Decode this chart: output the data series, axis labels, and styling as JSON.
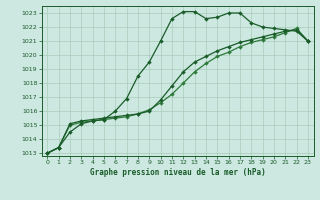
{
  "title": "Graphe pression niveau de la mer (hPa)",
  "background_color": "#cce8e0",
  "grid_color": "#aaccbb",
  "line_color_dark": "#1a5c2a",
  "line_color_medium": "#2d7a3a",
  "xlim": [
    -0.5,
    23.5
  ],
  "ylim": [
    1012.8,
    1023.5
  ],
  "xticks": [
    0,
    1,
    2,
    3,
    4,
    5,
    6,
    7,
    8,
    9,
    10,
    11,
    12,
    13,
    14,
    15,
    16,
    17,
    18,
    19,
    20,
    21,
    22,
    23
  ],
  "yticks": [
    1013,
    1014,
    1015,
    1016,
    1017,
    1018,
    1019,
    1020,
    1021,
    1022,
    1023
  ],
  "series1_x": [
    0,
    1,
    2,
    3,
    4,
    5,
    6,
    7,
    8,
    9,
    10,
    11,
    12,
    13,
    14,
    15,
    16,
    17,
    18,
    19,
    20,
    21,
    22,
    23
  ],
  "series1_y": [
    1013.0,
    1013.4,
    1014.5,
    1015.1,
    1015.3,
    1015.4,
    1016.0,
    1016.9,
    1018.5,
    1019.5,
    1021.0,
    1022.6,
    1023.1,
    1023.1,
    1022.6,
    1022.7,
    1023.0,
    1023.0,
    1022.3,
    1022.0,
    1021.9,
    1021.8,
    1021.7,
    1021.0
  ],
  "series2_x": [
    0,
    1,
    2,
    3,
    4,
    5,
    6,
    7,
    8,
    9,
    10,
    11,
    12,
    13,
    14,
    15,
    16,
    17,
    18,
    19,
    20,
    21,
    22,
    23
  ],
  "series2_y": [
    1013.0,
    1013.4,
    1015.1,
    1015.3,
    1015.4,
    1015.5,
    1015.6,
    1015.7,
    1015.8,
    1016.0,
    1016.8,
    1017.8,
    1018.8,
    1019.5,
    1019.9,
    1020.3,
    1020.6,
    1020.9,
    1021.1,
    1021.3,
    1021.5,
    1021.7,
    1021.8,
    1021.0
  ],
  "series3_x": [
    0,
    1,
    2,
    3,
    4,
    5,
    6,
    7,
    8,
    9,
    10,
    11,
    12,
    13,
    14,
    15,
    16,
    17,
    18,
    19,
    20,
    21,
    22,
    23
  ],
  "series3_y": [
    1013.0,
    1013.4,
    1015.0,
    1015.2,
    1015.3,
    1015.4,
    1015.5,
    1015.6,
    1015.8,
    1016.1,
    1016.6,
    1017.2,
    1018.0,
    1018.8,
    1019.4,
    1019.9,
    1020.2,
    1020.6,
    1020.9,
    1021.1,
    1021.3,
    1021.6,
    1021.9,
    1021.0
  ]
}
